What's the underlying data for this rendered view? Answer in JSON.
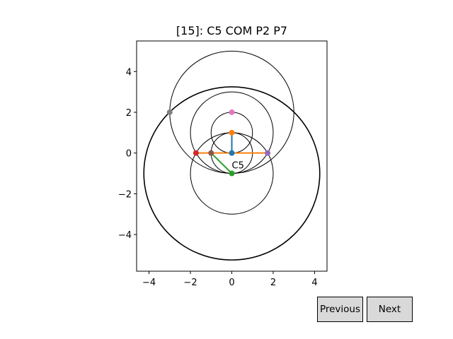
{
  "buttons": {
    "previous_label": "Previous",
    "next_label": "Next"
  },
  "chart_data": {
    "type": "scatter",
    "title": "[15]: C5 COM P2 P7",
    "xlabel": "",
    "ylabel": "",
    "xlim": [
      -4.6,
      4.6
    ],
    "ylim": [
      -5.8,
      5.5
    ],
    "xticks": [
      -4,
      -2,
      0,
      2,
      4
    ],
    "yticks": [
      -4,
      -2,
      0,
      2,
      4
    ],
    "grid": false,
    "circles": [
      {
        "cx": 0,
        "cy": 2,
        "r": 3
      },
      {
        "cx": 0,
        "cy": 1,
        "r": 2
      },
      {
        "cx": 0,
        "cy": 1,
        "r": 1
      },
      {
        "cx": 0,
        "cy": 0,
        "r": 1
      },
      {
        "cx": 0,
        "cy": -1,
        "r": 2
      },
      {
        "cx": 0,
        "cy": -1,
        "r": 4.24
      },
      {
        "cx": 0,
        "cy": -1,
        "r": 4.26
      }
    ],
    "segments": [
      {
        "color": "#1f77b4",
        "points": [
          [
            0,
            0
          ],
          [
            0,
            1
          ]
        ]
      },
      {
        "color": "#ff7f0e",
        "points": [
          [
            -1.73,
            0
          ],
          [
            1.73,
            0
          ]
        ]
      },
      {
        "color": "#2ca02c",
        "points": [
          [
            -1,
            0
          ],
          [
            0,
            -1
          ]
        ]
      }
    ],
    "points": [
      {
        "x": 0,
        "y": 0,
        "color": "#1f77b4"
      },
      {
        "x": 0,
        "y": 1,
        "color": "#ff7f0e"
      },
      {
        "x": 0,
        "y": -1,
        "color": "#2ca02c"
      },
      {
        "x": -1,
        "y": 0,
        "color": "#8c564b"
      },
      {
        "x": -1.73,
        "y": 0,
        "color": "#d62728"
      },
      {
        "x": 1.73,
        "y": 0,
        "color": "#9467bd"
      },
      {
        "x": 0,
        "y": 2,
        "color": "#e377c2"
      },
      {
        "x": -3,
        "y": 2,
        "color": "#7f7f7f"
      }
    ],
    "annotations": [
      {
        "text": "C5",
        "x": 0,
        "y": -0.75
      }
    ]
  }
}
